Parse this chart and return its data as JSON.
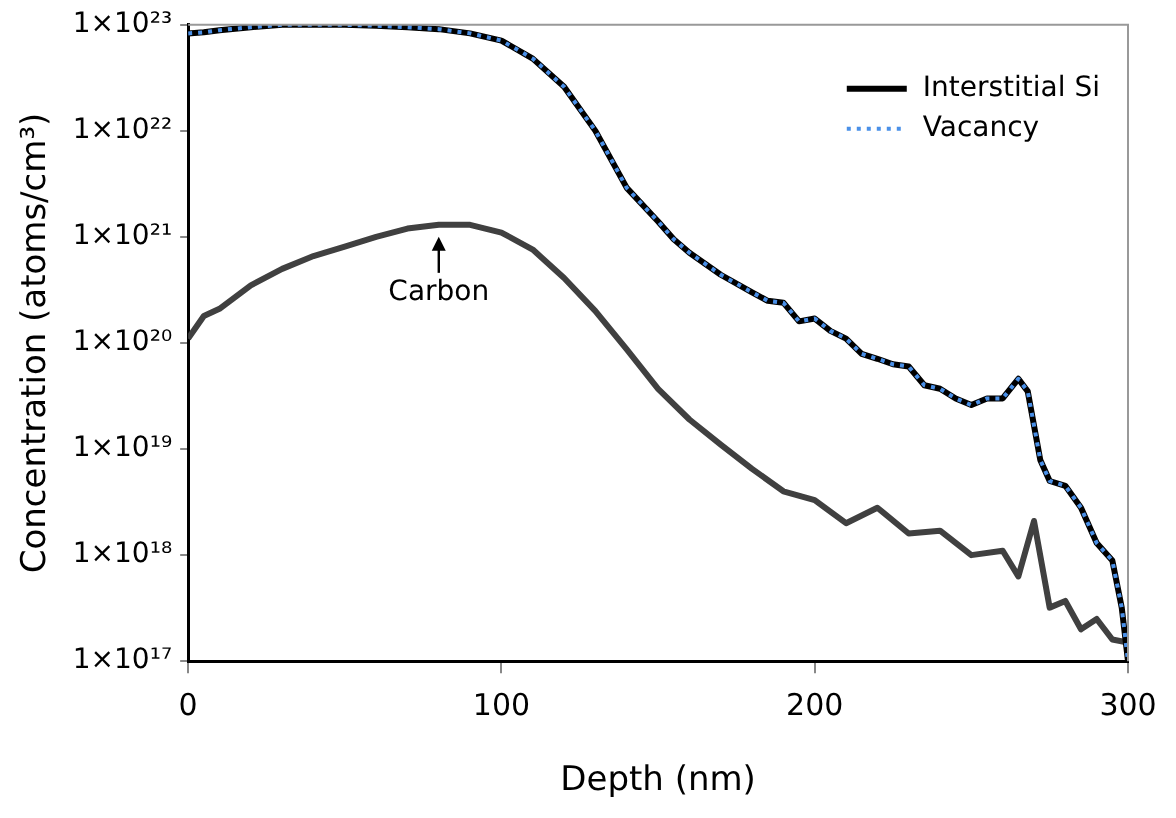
{
  "chart_data": {
    "type": "line",
    "xlabel": "Depth (nm)",
    "ylabel": "Concentration (atoms/cm³)",
    "log": "y",
    "grid": false,
    "legend": "top right",
    "marker": "none",
    "xlim": [
      0,
      300
    ],
    "xticks": [
      0,
      100,
      200,
      300
    ],
    "ylim": [
      1e+17,
      1e+23
    ],
    "yticks": [
      {
        "value": 1e+17,
        "label": "1×10¹⁷"
      },
      {
        "value": 1e+18,
        "label": "1×10¹⁸"
      },
      {
        "value": 1e+19,
        "label": "1×10¹⁹"
      },
      {
        "value": 1e+20,
        "label": "1×10²⁰"
      },
      {
        "value": 1e+21,
        "label": "1×10²¹"
      },
      {
        "value": 1e+22,
        "label": "1×10²²"
      },
      {
        "value": 1e+23,
        "label": "1×10²³"
      }
    ],
    "annotations": [
      {
        "text": "Carbon",
        "x": 80,
        "y": 1.3e+21
      }
    ],
    "series": [
      {
        "name": "Interstitial Si",
        "color": "#000000",
        "line_style": "solid",
        "x": [
          0,
          5,
          10,
          20,
          30,
          40,
          50,
          60,
          70,
          80,
          90,
          100,
          110,
          120,
          130,
          140,
          150,
          155,
          160,
          170,
          180,
          185,
          190,
          195,
          200,
          205,
          210,
          215,
          220,
          225,
          230,
          235,
          240,
          245,
          250,
          255,
          260,
          265,
          268,
          272,
          275,
          280,
          285,
          290,
          295,
          298,
          300
        ],
        "values": [
          8.3e+22,
          8.5e+22,
          8.9e+22,
          9.5e+22,
          1e+23,
          1e+23,
          1e+23,
          9.8e+22,
          9.5e+22,
          9.1e+22,
          8.3e+22,
          7.1e+22,
          4.8e+22,
          2.6e+22,
          1e+22,
          2.9e+21,
          1.4e+21,
          9.5e+20,
          7.1e+20,
          4.4e+20,
          3e+20,
          2.5e+20,
          2.4e+20,
          1.6e+20,
          1.7e+20,
          1.3e+20,
          1.1e+20,
          7.9e+19,
          7.1e+19,
          6.3e+19,
          6e+19,
          4e+19,
          3.7e+19,
          3e+19,
          2.6e+19,
          3e+19,
          3e+19,
          4.6e+19,
          3.5e+19,
          7.9e+18,
          5e+18,
          4.5e+18,
          2.8e+18,
          1.3e+18,
          8.9e+17,
          3.2e+17,
          1e+17
        ]
      },
      {
        "name": "Vacancy",
        "color": "#4a90e8",
        "line_style": "dotted",
        "x": [
          0,
          5,
          10,
          20,
          30,
          40,
          50,
          60,
          70,
          80,
          90,
          100,
          110,
          120,
          130,
          140,
          150,
          155,
          160,
          170,
          180,
          185,
          190,
          195,
          200,
          205,
          210,
          215,
          220,
          225,
          230,
          235,
          240,
          245,
          250,
          255,
          260,
          265,
          268,
          272,
          275,
          280,
          285,
          290,
          295,
          298,
          300
        ],
        "values": [
          8.3e+22,
          8.5e+22,
          8.9e+22,
          9.5e+22,
          1e+23,
          1e+23,
          1e+23,
          9.8e+22,
          9.5e+22,
          9.1e+22,
          8.3e+22,
          7.1e+22,
          4.8e+22,
          2.6e+22,
          1e+22,
          2.9e+21,
          1.4e+21,
          9.5e+20,
          7.1e+20,
          4.4e+20,
          3e+20,
          2.5e+20,
          2.4e+20,
          1.6e+20,
          1.7e+20,
          1.3e+20,
          1.1e+20,
          7.9e+19,
          7.1e+19,
          6.3e+19,
          6e+19,
          4e+19,
          3.7e+19,
          3e+19,
          2.6e+19,
          3e+19,
          3e+19,
          4.6e+19,
          3.5e+19,
          7.9e+18,
          5e+18,
          4.5e+18,
          2.8e+18,
          1.3e+18,
          8.9e+17,
          3.2e+17,
          1e+17
        ]
      },
      {
        "color": "#404040",
        "line_style": "solid",
        "x": [
          0,
          5,
          10,
          20,
          30,
          40,
          50,
          60,
          70,
          80,
          90,
          100,
          110,
          120,
          130,
          140,
          150,
          160,
          170,
          180,
          190,
          200,
          210,
          220,
          230,
          240,
          250,
          260,
          265,
          270,
          275,
          280,
          285,
          290,
          295,
          300
        ],
        "values": [
          1.1e+20,
          1.8e+20,
          2.1e+20,
          3.5e+20,
          5e+20,
          6.6e+20,
          8.1e+20,
          1e+21,
          1.2e+21,
          1.3e+21,
          1.3e+21,
          1.1e+21,
          7.6e+20,
          4.1e+20,
          2e+20,
          8.7e+19,
          3.7e+19,
          1.9e+19,
          1.1e+19,
          6.5e+18,
          4e+18,
          3.3e+18,
          2e+18,
          2.8e+18,
          1.6e+18,
          1.7e+18,
          1e+18,
          1.1e+18,
          6.3e+17,
          2.1e+18,
          3.2e+17,
          3.7e+17,
          2e+17,
          2.5e+17,
          1.6e+17,
          1.5e+17
        ]
      }
    ]
  }
}
